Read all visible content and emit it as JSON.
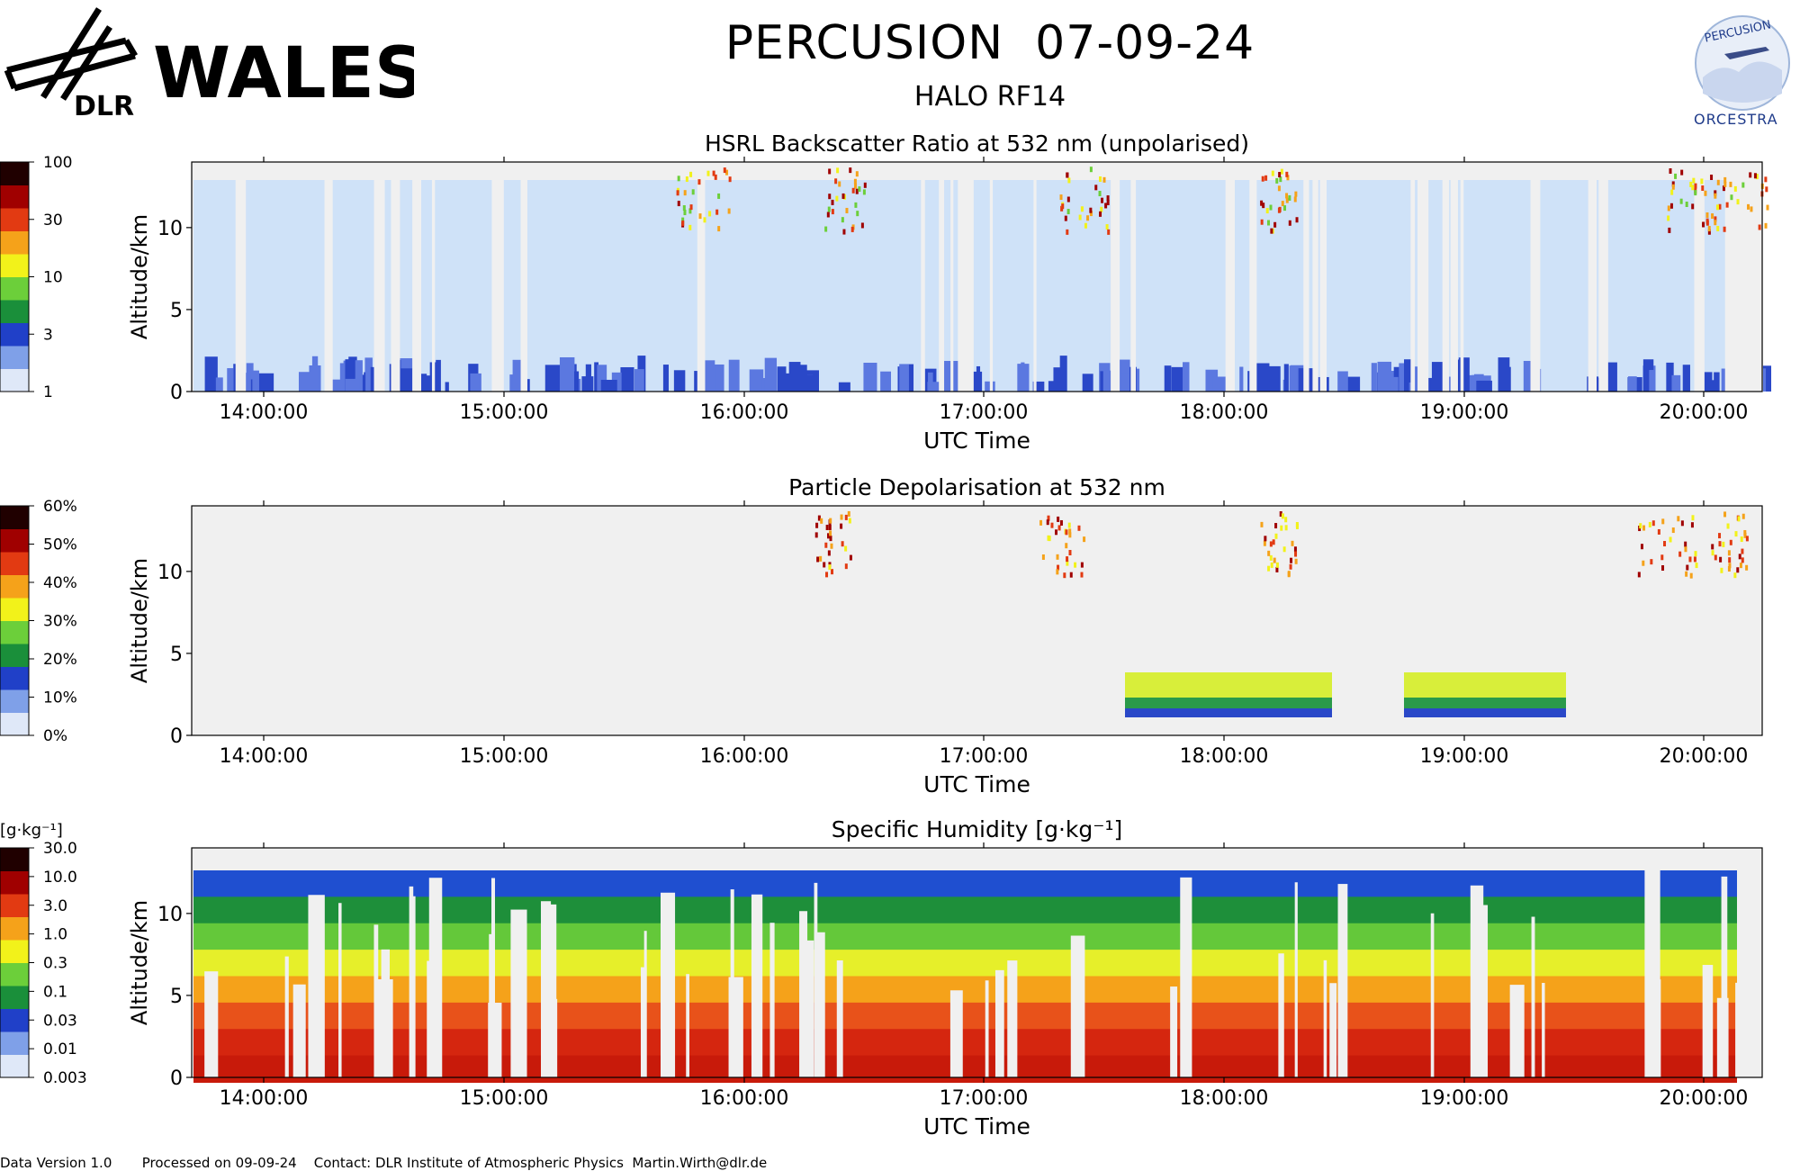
{
  "header": {
    "title": "PERCUSION  07-09-24",
    "subtitle": "HALO RF14",
    "logo_left_text": "WALES",
    "logo_left_org": "DLR",
    "logo_right_top": "PERCUSION",
    "logo_right_bottom": "ORCESTRA"
  },
  "chart_data": [
    {
      "type": "heatmap",
      "title": "HSRL Backscatter Ratio at 532 nm (unpolarised)",
      "xlabel": "UTC Time",
      "ylabel": "Altitude/km",
      "x_ticks": [
        "14:00:00",
        "15:00:00",
        "16:00:00",
        "17:00:00",
        "18:00:00",
        "19:00:00",
        "20:00:00"
      ],
      "y_ticks": [
        0,
        5,
        10
      ],
      "ylim": [
        0,
        14
      ],
      "colorbar": {
        "scale": "log",
        "ticks": [
          "1",
          "3",
          "10",
          "30",
          "100"
        ],
        "unit": "",
        "colors": [
          "#dfe8f8",
          "#7fa0e8",
          "#2040c8",
          "#1a8f3a",
          "#6ccf3a",
          "#f2f21a",
          "#f5a21a",
          "#e23a12",
          "#a00000",
          "#200000"
        ]
      }
    },
    {
      "type": "heatmap",
      "title": "Particle Depolarisation at 532 nm",
      "xlabel": "UTC Time",
      "ylabel": "Altitude/km",
      "x_ticks": [
        "14:00:00",
        "15:00:00",
        "16:00:00",
        "17:00:00",
        "18:00:00",
        "19:00:00",
        "20:00:00"
      ],
      "y_ticks": [
        0,
        5,
        10
      ],
      "ylim": [
        0,
        14
      ],
      "colorbar": {
        "scale": "linear",
        "ticks": [
          "0%",
          "10%",
          "20%",
          "30%",
          "40%",
          "50%",
          "60%"
        ],
        "unit": "",
        "colors": [
          "#dfe8f8",
          "#7fa0e8",
          "#2040c8",
          "#1a8f3a",
          "#6ccf3a",
          "#f2f21a",
          "#f5a21a",
          "#e23a12",
          "#a00000",
          "#200000"
        ]
      }
    },
    {
      "type": "heatmap",
      "title": "Specific Humidity [g·kg⁻¹]",
      "xlabel": "UTC Time",
      "ylabel": "Altitude/km",
      "x_ticks": [
        "14:00:00",
        "15:00:00",
        "16:00:00",
        "17:00:00",
        "18:00:00",
        "19:00:00",
        "20:00:00"
      ],
      "y_ticks": [
        0,
        5,
        10
      ],
      "ylim": [
        0,
        14
      ],
      "colorbar": {
        "scale": "log",
        "unit": "[g·kg⁻¹]",
        "ticks": [
          "0.003",
          "0.01",
          "0.03",
          "0.1",
          "0.3",
          "1.0",
          "3.0",
          "10.0",
          "30.0"
        ],
        "colors": [
          "#dfe8f8",
          "#7fa0e8",
          "#2040c8",
          "#1a8f3a",
          "#6ccf3a",
          "#f2f21a",
          "#f5a21a",
          "#e23a12",
          "#a00000",
          "#200000"
        ]
      }
    }
  ],
  "footer": {
    "text": "Data Version 1.0       Processed on 09-09-24    Contact: DLR Institute of Atmospheric Physics  Martin.Wirth@dlr.de"
  }
}
